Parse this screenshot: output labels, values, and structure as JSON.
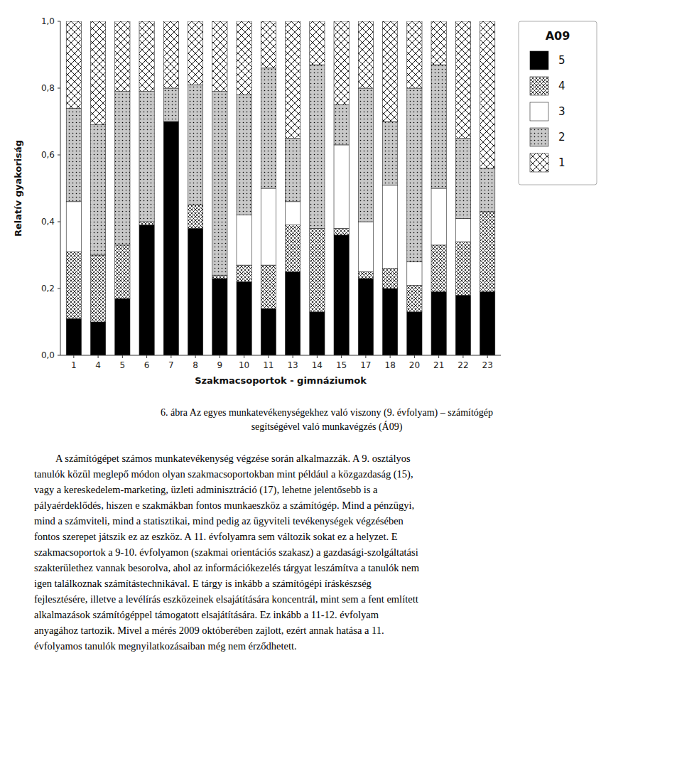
{
  "chart_data": {
    "type": "bar",
    "stacked": true,
    "title": "A09",
    "xlabel": "Szakmacsoportok - gimnáziumok",
    "ylabel": "Relatív gyakoriság",
    "categories": [
      "1",
      "4",
      "5",
      "6",
      "7",
      "8",
      "9",
      "10",
      "11",
      "13",
      "14",
      "15",
      "17",
      "18",
      "20",
      "21",
      "22",
      "23"
    ],
    "series": [
      {
        "name": "5",
        "color": "black",
        "values": [
          0.11,
          0.1,
          0.17,
          0.39,
          0.7,
          0.38,
          0.23,
          0.22,
          0.14,
          0.25,
          0.13,
          0.36,
          0.23,
          0.2,
          0.13,
          0.19,
          0.18,
          0.19
        ]
      },
      {
        "name": "4",
        "color": "white",
        "values": [
          0.2,
          0.2,
          0.16,
          0.01,
          0.0,
          0.07,
          0.01,
          0.05,
          0.13,
          0.14,
          0.25,
          0.02,
          0.02,
          0.06,
          0.08,
          0.14,
          0.16,
          0.24
        ]
      },
      {
        "name": "3",
        "color": "white",
        "values": [
          0.15,
          0.0,
          0.0,
          0.0,
          0.0,
          0.0,
          0.0,
          0.15,
          0.23,
          0.07,
          0.0,
          0.25,
          0.15,
          0.25,
          0.07,
          0.17,
          0.07,
          0.0
        ]
      },
      {
        "name": "2",
        "color": "#c8c8c8",
        "values": [
          0.28,
          0.39,
          0.46,
          0.39,
          0.1,
          0.36,
          0.55,
          0.36,
          0.36,
          0.19,
          0.49,
          0.12,
          0.4,
          0.19,
          0.52,
          0.37,
          0.24,
          0.13
        ]
      },
      {
        "name": "1",
        "color": "white",
        "values": [
          0.26,
          0.31,
          0.21,
          0.21,
          0.2,
          0.19,
          0.21,
          0.22,
          0.14,
          0.35,
          0.13,
          0.25,
          0.2,
          0.3,
          0.2,
          0.13,
          0.35,
          0.44
        ]
      }
    ],
    "ylim": [
      0.0,
      1.0
    ],
    "yticks": [
      {
        "value": 0.0,
        "label": "0,0"
      },
      {
        "value": 0.2,
        "label": "0,2"
      },
      {
        "value": 0.4,
        "label": "0,4"
      },
      {
        "value": 0.6,
        "label": "0,6"
      },
      {
        "value": 0.8,
        "label": "0,8"
      },
      {
        "value": 1.0,
        "label": "1,0"
      }
    ],
    "grid": false,
    "legend": "right",
    "annotations": [
      "6. ábra Az egyes munkatevékenységekhez való viszony (9. évfolyam) – számítógép",
      "segítségével való munkavégzés (Á09)",
      "A számítógépet számos munkatevékenység végzése során alkalmazzák. A 9. osztályos",
      "tanulók közül meglepő módon olyan szakmacsoportokban mint például a közgazdaság (15),",
      "vagy a kereskedelem-marketing, üzleti adminisztráció (17), lehetne jelentősebb is a",
      "pályaérdeklődés, hiszen e szakmákban fontos munkaeszköz a számítógép. Mind a pénzügyi,",
      "mind a számviteli, mind a statisztikai, mind pedig az ügyviteli tevékenységek végzésében",
      "fontos szerepet játszik ez az eszköz. A 11. évfolyamra sem változik sokat ez a helyzet. E",
      "szakmacsoportok a 9-10. évfolyamon (szakmai orientációs szakasz) a gazdasági-szolgáltatási",
      "szakterülethez vannak besorolva, ahol az információkezelés tárgyat leszámítva a tanulók nem",
      "igen találkoznak számítástechnikával. E tárgy is inkább a számítógépi íráskészség",
      "fejlesztésére, illetve a levélírás eszközeinek elsajátítására koncentrál, mint sem a fent említett",
      "alkalmazások számítógéppel támogatott elsajátítására. Ez inkább a 11-12. évfolyam",
      "anyagához tartozik. Mivel a mérés 2009 októberében zajlott, ezért annak hatása a 11.",
      "évfolyamos tanulók megnyilatkozásaiban még nem érződhetett."
    ]
  }
}
